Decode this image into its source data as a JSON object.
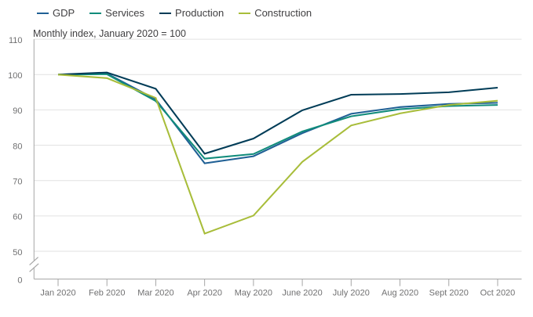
{
  "chart": {
    "subtitle": "Monthly index, January 2020 = 100"
  },
  "chart_data": {
    "type": "line",
    "title": "",
    "subtitle": "Monthly index, January 2020 = 100",
    "xlabel": "",
    "ylabel": "",
    "categories": [
      "Jan 2020",
      "Feb 2020",
      "Mar 2020",
      "Apr 2020",
      "May 2020",
      "June 2020",
      "July 2020",
      "Aug 2020",
      "Sept 2020",
      "Oct 2020"
    ],
    "series": [
      {
        "name": "GDP",
        "color": "#206095",
        "values": [
          100,
          100.3,
          93.0,
          74.9,
          76.9,
          83.4,
          88.9,
          90.8,
          91.7,
          92.0
        ]
      },
      {
        "name": "Services",
        "color": "#118C7B",
        "values": [
          100,
          100.1,
          92.5,
          76.2,
          77.5,
          83.9,
          88.2,
          90.2,
          91.1,
          91.4
        ]
      },
      {
        "name": "Production",
        "color": "#003C57",
        "values": [
          100,
          100.6,
          96.0,
          77.6,
          81.9,
          89.9,
          94.3,
          94.5,
          95.0,
          96.3
        ]
      },
      {
        "name": "Construction",
        "color": "#A8BD3A",
        "values": [
          100,
          99.0,
          93.4,
          55.0,
          60.1,
          75.3,
          85.6,
          89.0,
          91.4,
          92.6
        ]
      }
    ],
    "yticks": [
      0,
      50,
      60,
      70,
      80,
      90,
      100,
      110
    ],
    "ylim": [
      0,
      110
    ],
    "y_axis_break": true,
    "grid": "horizontal",
    "legend_position": "top",
    "colors": {
      "grid_line": "#e2e2e2",
      "axis_line": "#a6a6a6",
      "tick_label": "#707071",
      "text": "#414042"
    }
  }
}
